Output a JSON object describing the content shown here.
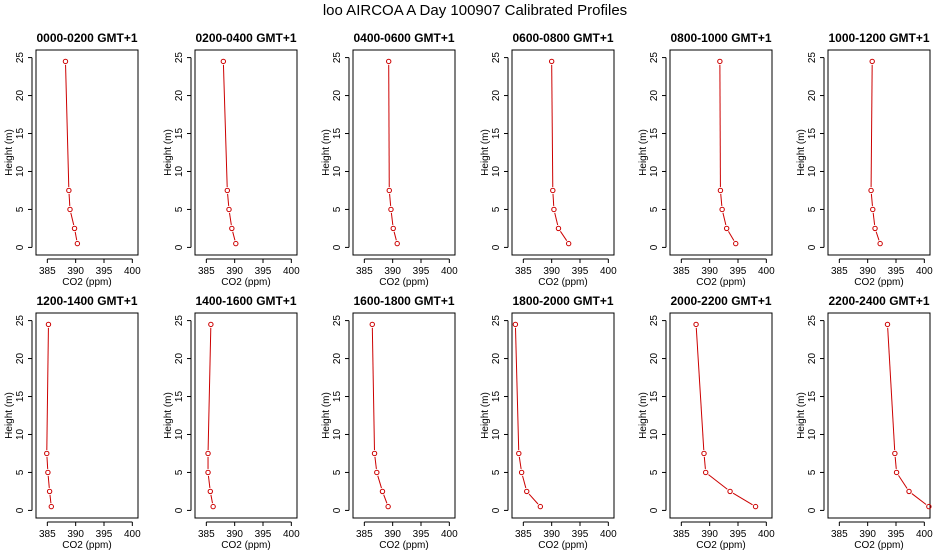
{
  "title": "loo AIRCOA A  Day 100907  Calibrated Profiles",
  "colors": {
    "profile": "#cc0000",
    "axis": "#000000"
  },
  "chart_data": [
    {
      "type": "line",
      "title": "0000-0200 GMT+1",
      "xlabel": "CO2 (ppm)",
      "ylabel": "Height (m)",
      "xlim": [
        383,
        401
      ],
      "ylim": [
        -1,
        26
      ],
      "xticks": [
        385,
        390,
        395,
        400
      ],
      "yticks": [
        0,
        5,
        10,
        15,
        20,
        25
      ],
      "series": [
        {
          "x": [
            390.3,
            389.8,
            389.0,
            388.8,
            388.2
          ],
          "y": [
            0.5,
            2.5,
            5,
            7.5,
            24.5
          ]
        }
      ]
    },
    {
      "type": "line",
      "title": "0200-0400 GMT+1",
      "xlabel": "CO2 (ppm)",
      "ylabel": "Height (m)",
      "xlim": [
        383,
        401
      ],
      "ylim": [
        -1,
        26
      ],
      "xticks": [
        385,
        390,
        395,
        400
      ],
      "yticks": [
        0,
        5,
        10,
        15,
        20,
        25
      ],
      "series": [
        {
          "x": [
            390.2,
            389.5,
            389.0,
            388.7,
            388.0
          ],
          "y": [
            0.5,
            2.5,
            5,
            7.5,
            24.5
          ]
        }
      ]
    },
    {
      "type": "line",
      "title": "0400-0600 GMT+1",
      "xlabel": "CO2 (ppm)",
      "ylabel": "Height (m)",
      "xlim": [
        383,
        401
      ],
      "ylim": [
        -1,
        26
      ],
      "xticks": [
        385,
        390,
        395,
        400
      ],
      "yticks": [
        0,
        5,
        10,
        15,
        20,
        25
      ],
      "series": [
        {
          "x": [
            390.8,
            390.1,
            389.7,
            389.4,
            389.3
          ],
          "y": [
            0.5,
            2.5,
            5,
            7.5,
            24.5
          ]
        }
      ]
    },
    {
      "type": "line",
      "title": "0600-0800 GMT+1",
      "xlabel": "CO2 (ppm)",
      "ylabel": "Height (m)",
      "xlim": [
        383,
        401
      ],
      "ylim": [
        -1,
        26
      ],
      "xticks": [
        385,
        390,
        395,
        400
      ],
      "yticks": [
        0,
        5,
        10,
        15,
        20,
        25
      ],
      "series": [
        {
          "x": [
            393.0,
            391.2,
            390.4,
            390.2,
            390.0
          ],
          "y": [
            0.5,
            2.5,
            5,
            7.5,
            24.5
          ]
        }
      ]
    },
    {
      "type": "line",
      "title": "0800-1000 GMT+1",
      "xlabel": "CO2 (ppm)",
      "ylabel": "Height (m)",
      "xlim": [
        383,
        401
      ],
      "ylim": [
        -1,
        26
      ],
      "xticks": [
        385,
        390,
        395,
        400
      ],
      "yticks": [
        0,
        5,
        10,
        15,
        20,
        25
      ],
      "series": [
        {
          "x": [
            394.6,
            393.0,
            392.2,
            391.9,
            391.8
          ],
          "y": [
            0.5,
            2.5,
            5,
            7.5,
            24.5
          ]
        }
      ]
    },
    {
      "type": "line",
      "title": "1000-1200 GMT+1",
      "xlabel": "CO2 (ppm)",
      "ylabel": "Height (m)",
      "xlim": [
        383,
        401
      ],
      "ylim": [
        -1,
        26
      ],
      "xticks": [
        385,
        390,
        395,
        400
      ],
      "yticks": [
        0,
        5,
        10,
        15,
        20,
        25
      ],
      "series": [
        {
          "x": [
            392.2,
            391.3,
            390.9,
            390.6,
            390.8
          ],
          "y": [
            0.5,
            2.5,
            5,
            7.5,
            24.5
          ]
        }
      ]
    },
    {
      "type": "line",
      "title": "1200-1400 GMT+1",
      "xlabel": "CO2 (ppm)",
      "ylabel": "Height (m)",
      "xlim": [
        383,
        401
      ],
      "ylim": [
        -1,
        26
      ],
      "xticks": [
        385,
        390,
        395,
        400
      ],
      "yticks": [
        0,
        5,
        10,
        15,
        20,
        25
      ],
      "series": [
        {
          "x": [
            385.7,
            385.4,
            385.1,
            384.9,
            385.2
          ],
          "y": [
            0.5,
            2.5,
            5,
            7.5,
            24.5
          ]
        }
      ]
    },
    {
      "type": "line",
      "title": "1400-1600 GMT+1",
      "xlabel": "CO2 (ppm)",
      "ylabel": "Height (m)",
      "xlim": [
        383,
        401
      ],
      "ylim": [
        -1,
        26
      ],
      "xticks": [
        385,
        390,
        395,
        400
      ],
      "yticks": [
        0,
        5,
        10,
        15,
        20,
        25
      ],
      "series": [
        {
          "x": [
            386.2,
            385.7,
            385.3,
            385.3,
            385.8
          ],
          "y": [
            0.5,
            2.5,
            5,
            7.5,
            24.5
          ]
        }
      ]
    },
    {
      "type": "line",
      "title": "1600-1800 GMT+1",
      "xlabel": "CO2 (ppm)",
      "ylabel": "Height (m)",
      "xlim": [
        383,
        401
      ],
      "ylim": [
        -1,
        26
      ],
      "xticks": [
        385,
        390,
        395,
        400
      ],
      "yticks": [
        0,
        5,
        10,
        15,
        20,
        25
      ],
      "series": [
        {
          "x": [
            389.2,
            388.2,
            387.2,
            386.8,
            386.4
          ],
          "y": [
            0.5,
            2.5,
            5,
            7.5,
            24.5
          ]
        }
      ]
    },
    {
      "type": "line",
      "title": "1800-2000 GMT+1",
      "xlabel": "CO2 (ppm)",
      "ylabel": "Height (m)",
      "xlim": [
        383,
        401
      ],
      "ylim": [
        -1,
        26
      ],
      "xticks": [
        385,
        390,
        395,
        400
      ],
      "yticks": [
        0,
        5,
        10,
        15,
        20,
        25
      ],
      "series": [
        {
          "x": [
            388.0,
            385.6,
            384.7,
            384.2,
            383.6
          ],
          "y": [
            0.5,
            2.5,
            5,
            7.5,
            24.5
          ]
        }
      ]
    },
    {
      "type": "line",
      "title": "2000-2200 GMT+1",
      "xlabel": "CO2 (ppm)",
      "ylabel": "Height (m)",
      "xlim": [
        383,
        401
      ],
      "ylim": [
        -1,
        26
      ],
      "xticks": [
        385,
        390,
        395,
        400
      ],
      "yticks": [
        0,
        5,
        10,
        15,
        20,
        25
      ],
      "series": [
        {
          "x": [
            398.1,
            393.6,
            389.3,
            389.0,
            387.6
          ],
          "y": [
            0.5,
            2.5,
            5,
            7.5,
            24.5
          ]
        }
      ]
    },
    {
      "type": "line",
      "title": "2200-2400 GMT+1",
      "xlabel": "CO2 (ppm)",
      "ylabel": "Height (m)",
      "xlim": [
        383,
        401
      ],
      "ylim": [
        -1,
        26
      ],
      "xticks": [
        385,
        390,
        395,
        400
      ],
      "yticks": [
        0,
        5,
        10,
        15,
        20,
        25
      ],
      "series": [
        {
          "x": [
            400.8,
            397.3,
            395.1,
            394.8,
            393.5
          ],
          "y": [
            0.5,
            2.5,
            5,
            7.5,
            24.5
          ]
        }
      ]
    }
  ]
}
